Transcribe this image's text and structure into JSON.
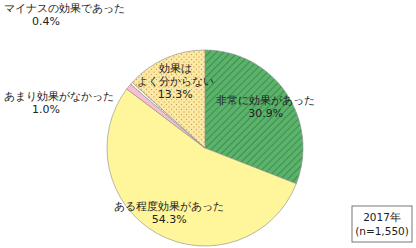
{
  "chart_data": {
    "type": "pie",
    "categories": [
      "非常に効果があった",
      "ある程度効果があった",
      "あまり効果がなかった",
      "マイナスの効果であった",
      "効果は\nよく分からない"
    ],
    "values": [
      30.9,
      54.3,
      1.0,
      0.4,
      13.3
    ],
    "value_labels": [
      "30.9%",
      "54.3%",
      "1.0%",
      "0.4%",
      "13.3%"
    ],
    "colors": [
      "#5bb36b",
      "#fff59a",
      "#f7bfd2",
      "#ffffff",
      "#fde9a6"
    ],
    "data_labels": true,
    "annotations": [
      "2017年",
      "(n=1,550)"
    ]
  }
}
